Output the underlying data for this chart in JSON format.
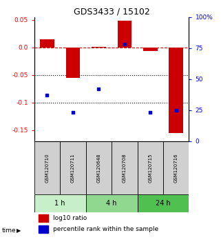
{
  "title": "GDS3433 / 15102",
  "samples": [
    "GSM120710",
    "GSM120711",
    "GSM120648",
    "GSM120708",
    "GSM120715",
    "GSM120716"
  ],
  "log10_ratio": [
    0.015,
    -0.055,
    0.001,
    0.048,
    -0.007,
    -0.155
  ],
  "percentile_rank_pct": [
    37,
    23,
    42,
    78,
    23,
    25
  ],
  "time_groups": [
    {
      "label": "1 h",
      "start": 0,
      "end": 2,
      "color": "#c8f0c8"
    },
    {
      "label": "4 h",
      "start": 2,
      "end": 4,
      "color": "#90d890"
    },
    {
      "label": "24 h",
      "start": 4,
      "end": 6,
      "color": "#50c050"
    }
  ],
  "ylim_left": [
    -0.17,
    0.055
  ],
  "ylim_right": [
    0,
    100
  ],
  "left_ticks": [
    0.05,
    0.0,
    -0.05,
    -0.1,
    -0.15
  ],
  "right_ticks": [
    100,
    75,
    50,
    25,
    0
  ],
  "bar_color": "#cc0000",
  "dot_color": "#0000cc",
  "zero_line_color": "#cc0000",
  "dotted_line_color": "#000000",
  "bar_width": 0.55,
  "legend_items": [
    "log10 ratio",
    "percentile rank within the sample"
  ],
  "sample_bg": "#d0d0d0",
  "fig_bg": "#ffffff"
}
